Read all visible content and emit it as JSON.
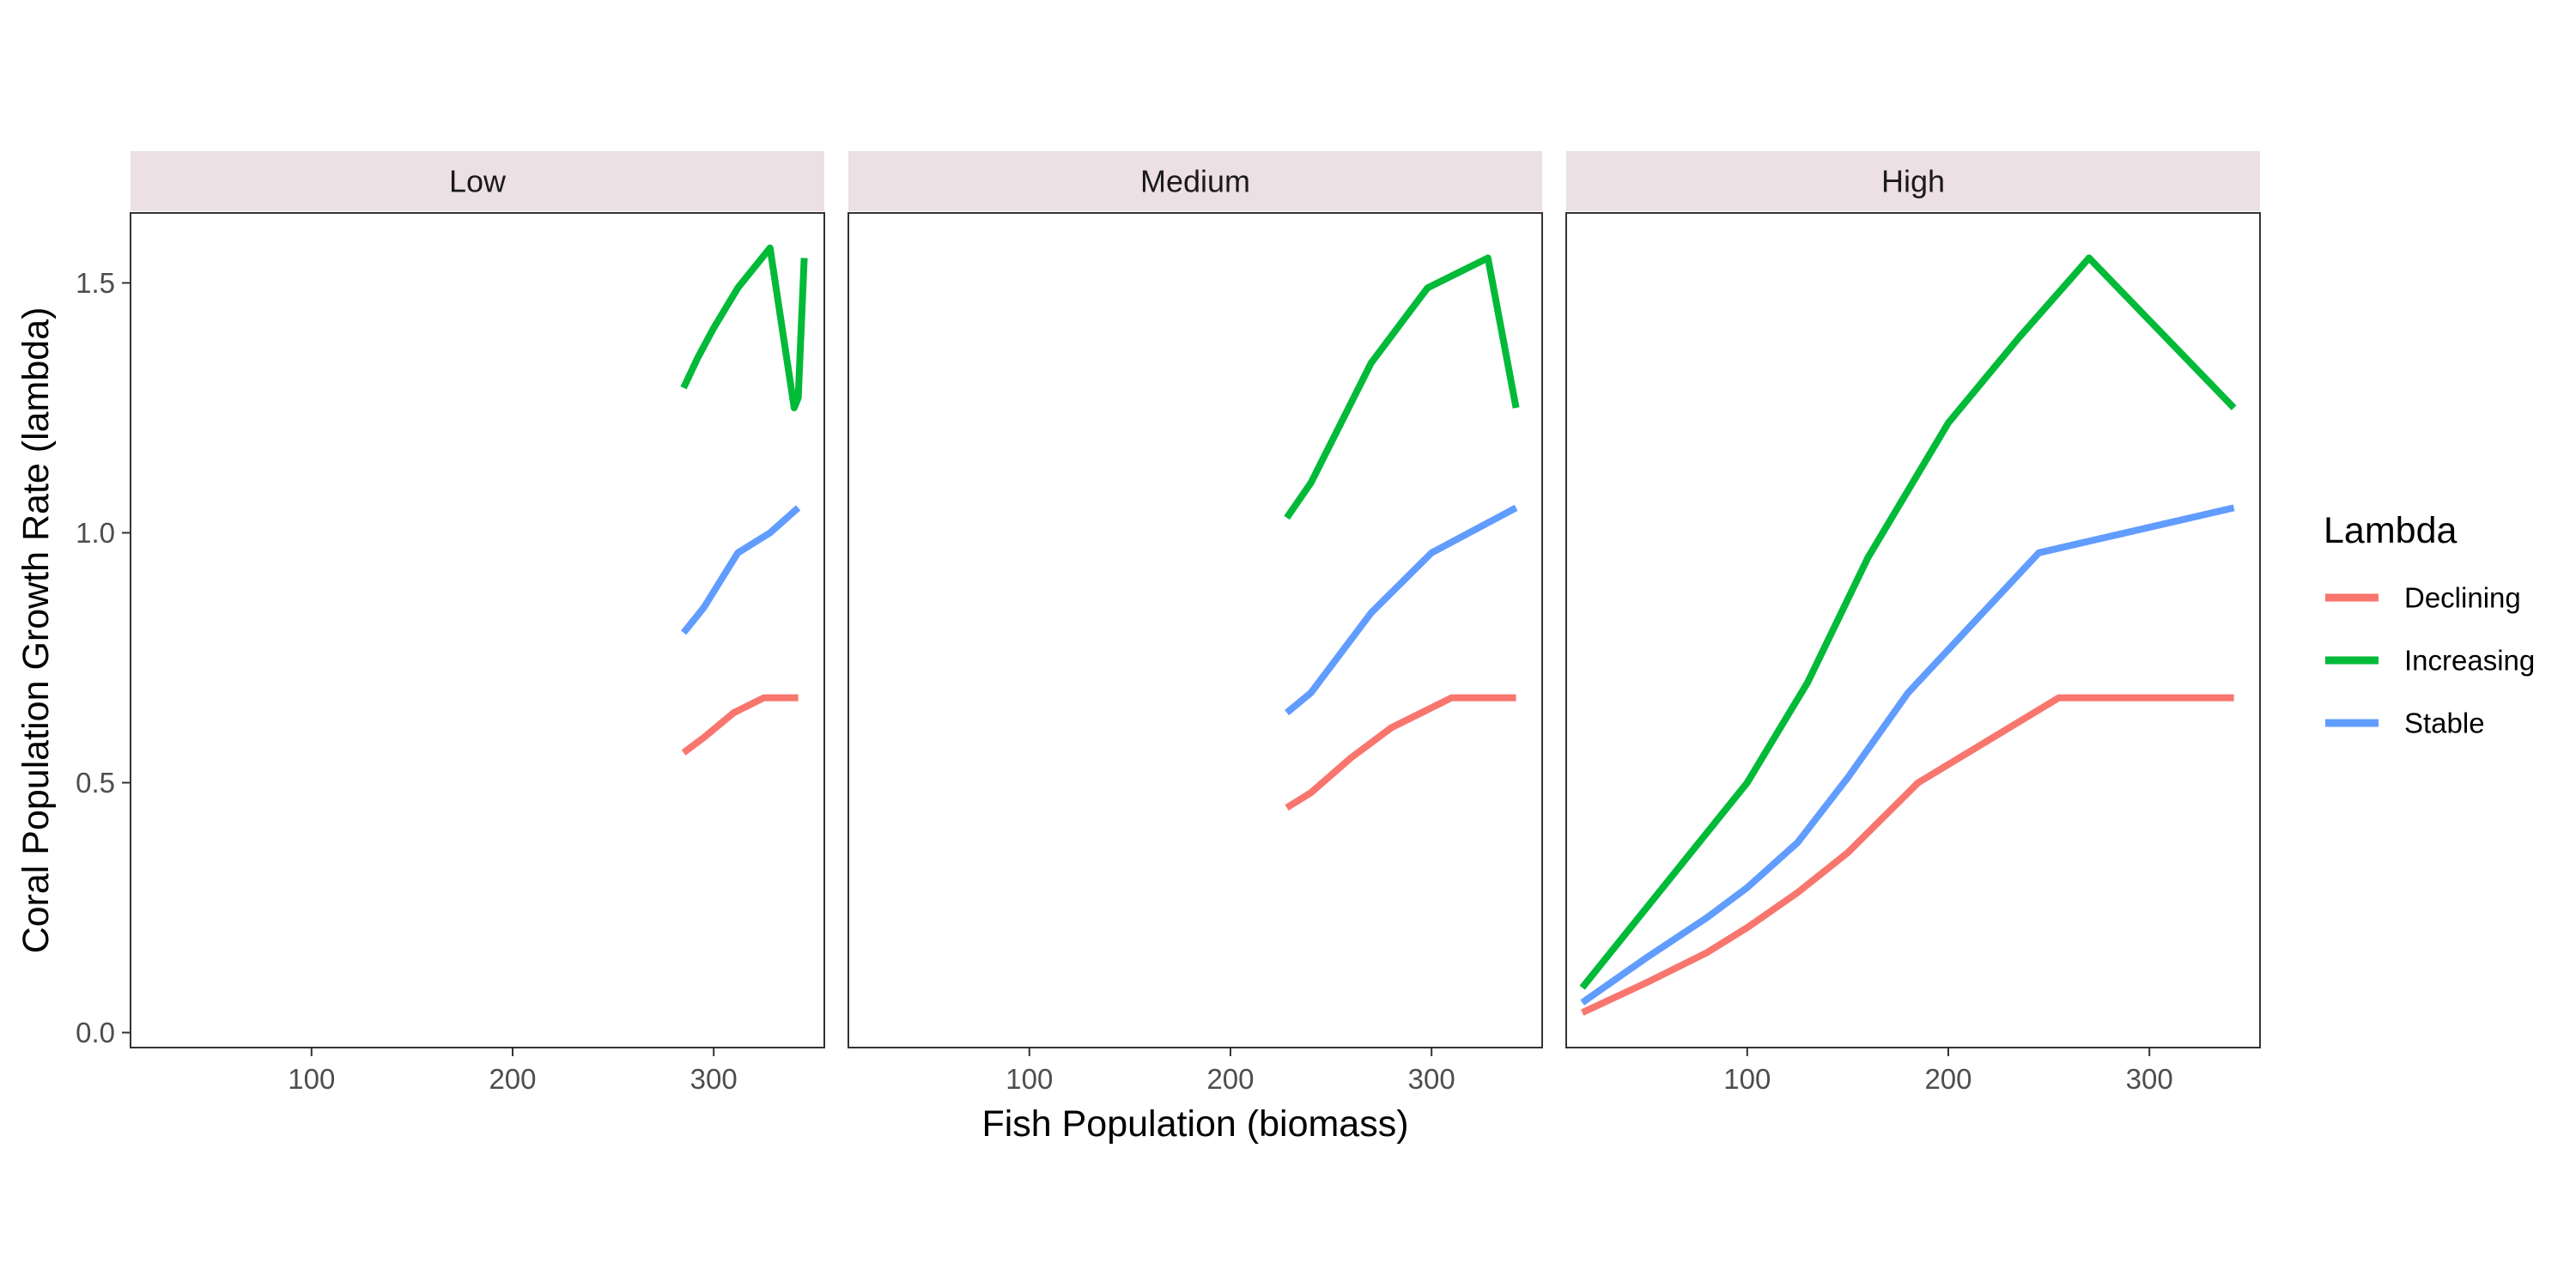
{
  "chart_data": {
    "type": "line",
    "xlabel": "Fish Population (biomass)",
    "ylabel": "Coral Population Growth Rate (lambda)",
    "xlim": [
      10,
      355
    ],
    "ylim": [
      -0.03,
      1.64
    ],
    "x_ticks": [
      100,
      200,
      300
    ],
    "y_ticks": [
      0.0,
      0.5,
      1.0,
      1.5
    ],
    "y_tick_labels": [
      "0.0",
      "0.5",
      "1.0",
      "1.5"
    ],
    "grid": false,
    "legend": {
      "title": "Lambda",
      "placement": "right",
      "entries": [
        "Declining",
        "Increasing",
        "Stable"
      ]
    },
    "colors": {
      "Declining": "#F8766D",
      "Increasing": "#00BA38",
      "Stable": "#619CFF"
    },
    "panels": [
      {
        "label": "Low",
        "series": [
          {
            "name": "Declining",
            "x": [
              285,
              295,
              310,
              325,
              342
            ],
            "y": [
              0.56,
              0.59,
              0.64,
              0.67,
              0.67
            ]
          },
          {
            "name": "Increasing",
            "x": [
              285,
              292,
              300,
              312,
              328,
              340,
              342,
              345
            ],
            "y": [
              1.29,
              1.35,
              1.41,
              1.49,
              1.57,
              1.25,
              1.27,
              1.55
            ]
          },
          {
            "name": "Stable",
            "x": [
              285,
              295,
              312,
              328,
              342
            ],
            "y": [
              0.8,
              0.85,
              0.96,
              1.0,
              1.05
            ]
          }
        ]
      },
      {
        "label": "Medium",
        "series": [
          {
            "name": "Declining",
            "x": [
              228,
              240,
              260,
              280,
              310,
              342
            ],
            "y": [
              0.45,
              0.48,
              0.55,
              0.61,
              0.67,
              0.67
            ]
          },
          {
            "name": "Increasing",
            "x": [
              228,
              240,
              255,
              270,
              298,
              328,
              342
            ],
            "y": [
              1.03,
              1.1,
              1.22,
              1.34,
              1.49,
              1.55,
              1.25
            ]
          },
          {
            "name": "Stable",
            "x": [
              228,
              240,
              270,
              300,
              342
            ],
            "y": [
              0.64,
              0.68,
              0.84,
              0.96,
              1.05
            ]
          }
        ]
      },
      {
        "label": "High",
        "series": [
          {
            "name": "Declining",
            "x": [
              18,
              50,
              80,
              100,
              125,
              150,
              185,
              255,
              342
            ],
            "y": [
              0.04,
              0.1,
              0.16,
              0.21,
              0.28,
              0.36,
              0.5,
              0.67,
              0.67
            ]
          },
          {
            "name": "Increasing",
            "x": [
              18,
              50,
              100,
              130,
              160,
              200,
              235,
              270,
              342
            ],
            "y": [
              0.09,
              0.25,
              0.5,
              0.7,
              0.95,
              1.22,
              1.39,
              1.55,
              1.25
            ]
          },
          {
            "name": "Stable",
            "x": [
              18,
              50,
              80,
              100,
              125,
              150,
              180,
              245,
              342
            ],
            "y": [
              0.06,
              0.15,
              0.23,
              0.29,
              0.38,
              0.51,
              0.68,
              0.96,
              1.05
            ]
          }
        ]
      }
    ]
  }
}
